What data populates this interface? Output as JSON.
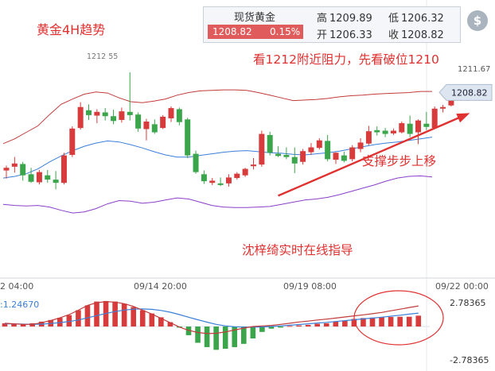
{
  "quote": {
    "name": "现货黄金",
    "price": "1208.82",
    "change": "0.15%",
    "high_label": "高",
    "high": "1209.89",
    "low_label": "低",
    "low": "1206.32",
    "open_label": "开",
    "open": "1206.33",
    "close_label": "收",
    "close": "1208.82"
  },
  "icons": {
    "currency": "dollar-icon"
  },
  "colors": {
    "up": "#d83b3b",
    "down": "#3aa54a",
    "midband": "#3a7fd8",
    "lowerband": "#8a3fc8",
    "upperband": "#c23b3b",
    "annotation": "#e03030",
    "price_label_bg": "#dde6f0"
  },
  "chart_data": [
    {
      "type": "candlestick",
      "title": "黄金4H趋势",
      "annotations": [
        {
          "text": "看1212附近阻力，先看破位1210",
          "color": "#e03030"
        },
        {
          "text": "支撑步步上移",
          "color": "#e03030"
        },
        {
          "text": "沈梓绮实时在线指导",
          "color": "#e03030"
        }
      ],
      "x_ticks": [
        "2 04:00",
        "09/14 20:00",
        "09/19 08:00",
        "09/22 00:00"
      ],
      "y_labels": [
        "1211.67",
        "1208.82"
      ],
      "peak_label": "1212 55",
      "last_price": 1208.82,
      "ylim": [
        1187,
        1213.3
      ],
      "candles": [
        [
          1194.3,
          1195.2,
          1192.8,
          1194.8
        ],
        [
          1195.0,
          1196.8,
          1193.9,
          1195.6
        ],
        [
          1195.5,
          1195.9,
          1192.4,
          1193.4
        ],
        [
          1193.6,
          1194.8,
          1192.0,
          1192.2
        ],
        [
          1192.1,
          1194.4,
          1191.7,
          1194.0
        ],
        [
          1193.4,
          1194.4,
          1192.0,
          1192.6
        ],
        [
          1192.6,
          1194.2,
          1190.8,
          1192.0
        ],
        [
          1192.0,
          1197.6,
          1191.7,
          1197.1
        ],
        [
          1197.2,
          1202.5,
          1196.8,
          1202.1
        ],
        [
          1202.2,
          1207.0,
          1201.9,
          1206.1
        ],
        [
          1205.5,
          1206.6,
          1203.7,
          1204.6
        ],
        [
          1204.5,
          1205.7,
          1203.1,
          1205.2
        ],
        [
          1205.1,
          1205.9,
          1203.6,
          1204.4
        ],
        [
          1204.4,
          1205.6,
          1202.9,
          1203.5
        ],
        [
          1203.7,
          1206.0,
          1203.2,
          1205.3
        ],
        [
          1205.2,
          1212.55,
          1203.6,
          1204.6
        ],
        [
          1204.7,
          1205.1,
          1201.5,
          1202.1
        ],
        [
          1202.0,
          1203.9,
          1199.9,
          1203.4
        ],
        [
          1202.9,
          1203.8,
          1201.1,
          1201.4
        ],
        [
          1202.2,
          1204.6,
          1202.0,
          1204.3
        ],
        [
          1204.0,
          1206.2,
          1203.3,
          1205.9
        ],
        [
          1205.7,
          1206.0,
          1202.7,
          1203.3
        ],
        [
          1203.8,
          1204.1,
          1196.6,
          1197.1
        ],
        [
          1197.4,
          1198.0,
          1193.7,
          1194.0
        ],
        [
          1193.6,
          1194.3,
          1191.8,
          1192.3
        ],
        [
          1192.0,
          1192.9,
          1191.6,
          1192.4
        ],
        [
          1191.9,
          1193.0,
          1191.4,
          1191.6
        ],
        [
          1191.9,
          1193.6,
          1191.3,
          1193.0
        ],
        [
          1192.9,
          1194.0,
          1192.6,
          1193.7
        ],
        [
          1193.4,
          1194.8,
          1193.1,
          1194.6
        ],
        [
          1195.1,
          1196.6,
          1194.5,
          1195.4
        ],
        [
          1195.4,
          1201.7,
          1195.0,
          1201.1
        ],
        [
          1200.9,
          1201.5,
          1197.1,
          1197.6
        ],
        [
          1197.4,
          1198.8,
          1196.8,
          1197.0
        ],
        [
          1197.2,
          1198.6,
          1196.4,
          1196.8
        ],
        [
          1196.8,
          1198.6,
          1193.8,
          1195.6
        ],
        [
          1195.9,
          1198.3,
          1195.4,
          1197.9
        ],
        [
          1197.7,
          1199.4,
          1197.2,
          1198.6
        ],
        [
          1198.5,
          1200.3,
          1198.2,
          1199.9
        ],
        [
          1199.8,
          1200.9,
          1196.0,
          1196.4
        ],
        [
          1196.3,
          1197.7,
          1195.5,
          1197.6
        ],
        [
          1197.1,
          1197.8,
          1195.8,
          1196.1
        ],
        [
          1196.4,
          1199.0,
          1196.0,
          1198.6
        ],
        [
          1198.3,
          1200.3,
          1197.7,
          1199.5
        ],
        [
          1199.3,
          1202.6,
          1199.0,
          1201.6
        ],
        [
          1201.8,
          1202.5,
          1200.8,
          1201.4
        ],
        [
          1201.7,
          1202.2,
          1200.5,
          1201.1
        ],
        [
          1201.2,
          1202.1,
          1200.9,
          1201.7
        ],
        [
          1201.4,
          1203.4,
          1201.2,
          1203.1
        ],
        [
          1203.0,
          1204.5,
          1200.5,
          1201.1
        ],
        [
          1201.4,
          1203.8,
          1199.2,
          1203.6
        ],
        [
          1203.0,
          1205.2,
          1201.8,
          1202.4
        ],
        [
          1202.2,
          1206.2,
          1202.0,
          1205.8
        ],
        [
          1205.8,
          1206.5,
          1205.1,
          1206.1
        ],
        [
          1206.4,
          1209.9,
          1206.2,
          1208.8
        ]
      ],
      "bollinger": {
        "upper": [
          1199.3,
          1200.2,
          1201.4,
          1202.6,
          1204.7,
          1206.6,
          1207.6,
          1208.5,
          1208.9,
          1208.7,
          1207.8,
          1207.1,
          1206.9,
          1207.2,
          1207.6,
          1208.3,
          1208.8,
          1209.1,
          1209.2,
          1209.3,
          1209.3,
          1209.2,
          1208.8,
          1208.3,
          1207.8,
          1207.3,
          1207.4,
          1207.5,
          1207.7,
          1208.0,
          1208.2,
          1208.3,
          1208.5,
          1208.6,
          1208.7,
          1208.8,
          1209.0,
          1209.0
        ],
        "middle": [
          1192.9,
          1193.2,
          1193.7,
          1194.6,
          1195.9,
          1197.0,
          1198.0,
          1198.8,
          1199.4,
          1199.8,
          1199.6,
          1199.1,
          1198.5,
          1197.8,
          1197.2,
          1196.8,
          1196.8,
          1197.1,
          1197.4,
          1197.7,
          1197.9,
          1198.0,
          1197.8,
          1197.6,
          1197.5,
          1197.3,
          1197.2,
          1197.4,
          1197.6,
          1197.9,
          1198.3,
          1198.7,
          1199.1,
          1199.4,
          1199.6,
          1199.9,
          1200.2,
          1200.5
        ],
        "lower": [
          1188.0,
          1187.8,
          1187.7,
          1187.8,
          1187.5,
          1186.9,
          1186.4,
          1186.6,
          1187.2,
          1188.1,
          1188.7,
          1188.6,
          1188.2,
          1188.4,
          1188.8,
          1189.2,
          1189.0,
          1188.4,
          1187.8,
          1187.5,
          1187.4,
          1187.4,
          1187.5,
          1187.6,
          1188.0,
          1188.4,
          1188.8,
          1189.0,
          1189.3,
          1189.8,
          1190.4,
          1191.0,
          1191.6,
          1192.3,
          1192.9,
          1193.2,
          1193.3,
          1193.1
        ]
      },
      "trendline": {
        "from": [
          33,
          1189.6
        ],
        "to": [
          56,
          1204.8
        ]
      }
    },
    {
      "type": "macd",
      "y_labels": [
        "2.78365",
        "-2.78365"
      ],
      "legend_value": ":1.24670",
      "ylim": [
        -2.78365,
        2.78365
      ],
      "histogram": [
        0.3,
        0.25,
        0.2,
        0.3,
        0.45,
        0.6,
        0.8,
        1.05,
        1.5,
        1.95,
        2.3,
        2.35,
        2.3,
        2.1,
        1.8,
        1.5,
        1.2,
        0.85,
        0.4,
        -0.1,
        -0.8,
        -1.5,
        -1.9,
        -2.15,
        -2.05,
        -1.9,
        -1.6,
        -1.1,
        -0.5,
        -0.2,
        -0.1,
        0.05,
        0.1,
        0.15,
        0.25,
        0.3,
        0.45,
        0.55,
        0.7,
        0.78,
        0.82,
        0.85,
        0.88,
        0.9,
        0.9,
        1.0
      ],
      "dif": [
        0.3,
        0.25,
        0.2,
        0.2,
        0.35,
        0.55,
        0.8,
        1.1,
        1.5,
        1.95,
        2.2,
        2.3,
        2.25,
        2.1,
        1.85,
        1.5,
        1.15,
        0.75,
        0.35,
        -0.05,
        -0.35,
        -0.55,
        -0.65,
        -0.62,
        -0.5,
        -0.32,
        -0.15,
        0.0,
        0.05,
        0.1,
        0.2,
        0.3,
        0.42,
        0.5,
        0.6,
        0.68,
        0.78,
        0.88,
        0.98,
        1.08,
        1.18,
        1.3,
        1.45,
        1.6,
        1.75,
        1.9
      ],
      "dea": [
        0.25,
        0.24,
        0.22,
        0.2,
        0.22,
        0.28,
        0.36,
        0.46,
        0.6,
        0.8,
        1.0,
        1.2,
        1.38,
        1.52,
        1.6,
        1.62,
        1.58,
        1.48,
        1.32,
        1.1,
        0.86,
        0.62,
        0.4,
        0.2,
        0.06,
        -0.02,
        -0.06,
        -0.06,
        -0.04,
        0.0,
        0.06,
        0.12,
        0.18,
        0.25,
        0.32,
        0.38,
        0.46,
        0.54,
        0.62,
        0.7,
        0.78,
        0.86,
        0.95,
        1.04,
        1.14,
        1.24
      ]
    }
  ]
}
